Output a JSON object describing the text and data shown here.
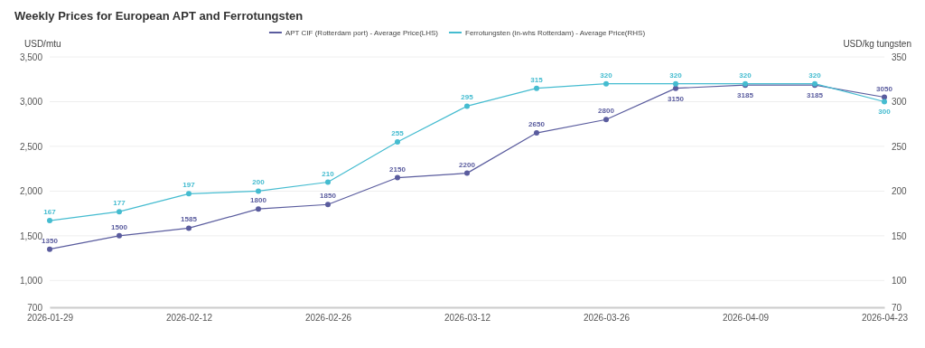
{
  "chart_data": {
    "type": "line",
    "title": "Weekly Prices for European APT and Ferrotungsten",
    "x": [
      "2026-01-29",
      "2026-02-05",
      "2026-02-12",
      "2026-02-19",
      "2026-02-26",
      "2026-03-05",
      "2026-03-12",
      "2026-03-19",
      "2026-03-26",
      "2026-04-02",
      "2026-04-09",
      "2026-04-16",
      "2026-04-23"
    ],
    "xlim": [
      "2026-01-29",
      "2026-04-23"
    ],
    "xticks": [
      "2026-01-29",
      "2026-02-12",
      "2026-02-26",
      "2026-03-12",
      "2026-03-26",
      "2026-04-09",
      "2026-04-23"
    ],
    "series": [
      {
        "name": "APT CIF (Rotterdam port) - Average Price(LHS)",
        "color": "#5a5c9e",
        "values": [
          1350,
          1500,
          1585,
          1800,
          1850,
          2150,
          2200,
          2650,
          2800,
          3150,
          3185,
          3185,
          3050
        ]
      },
      {
        "name": "Ferrotungsten (in-whs Rotterdam) - Average Price(RHS)",
        "color": "#45bcd0",
        "axis": "y2",
        "values": [
          167,
          177,
          197,
          200,
          210,
          255,
          295,
          315,
          320,
          320,
          320,
          320,
          300
        ]
      }
    ],
    "ylabel": "USD/mtu",
    "y2label": "USD/kg tungsten",
    "ylim": [
      700,
      3500
    ],
    "yticks": [
      700,
      {
        "value": 1000,
        "label": "1,000"
      },
      {
        "value": 1500,
        "label": "1,500"
      },
      {
        "value": 2000,
        "label": "2,000"
      },
      {
        "value": 2500,
        "label": "2,500"
      },
      {
        "value": 3000,
        "label": "3,000"
      },
      {
        "value": 3500,
        "label": "3,500"
      }
    ],
    "y2lim": [
      70,
      350
    ],
    "y2ticks": [
      70,
      100,
      150,
      200,
      250,
      300,
      350
    ],
    "grid": "y",
    "legend": "top",
    "marker": "circle",
    "line_style": "solid",
    "data_labels": true
  }
}
